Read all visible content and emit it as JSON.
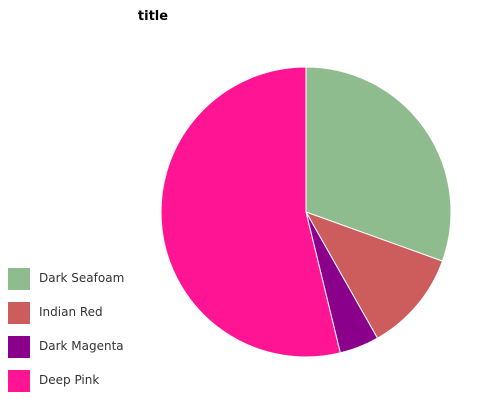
{
  "chart_data": {
    "type": "pie",
    "title": "title",
    "categories": [
      "Dark Seafoam",
      "Indian Red",
      "Dark Magenta",
      "Deep Pink"
    ],
    "values": [
      30.5,
      11.3,
      4.4,
      53.8
    ],
    "colors": [
      "#8fbc8f",
      "#cd5c5c",
      "#8b008b",
      "#ff1493"
    ],
    "start_angle_deg": 90,
    "direction": "clockwise",
    "legend": {
      "placement": "bottom-left",
      "entries": [
        "Dark Seafoam",
        "Indian Red",
        "Dark Magenta",
        "Deep Pink"
      ]
    }
  }
}
